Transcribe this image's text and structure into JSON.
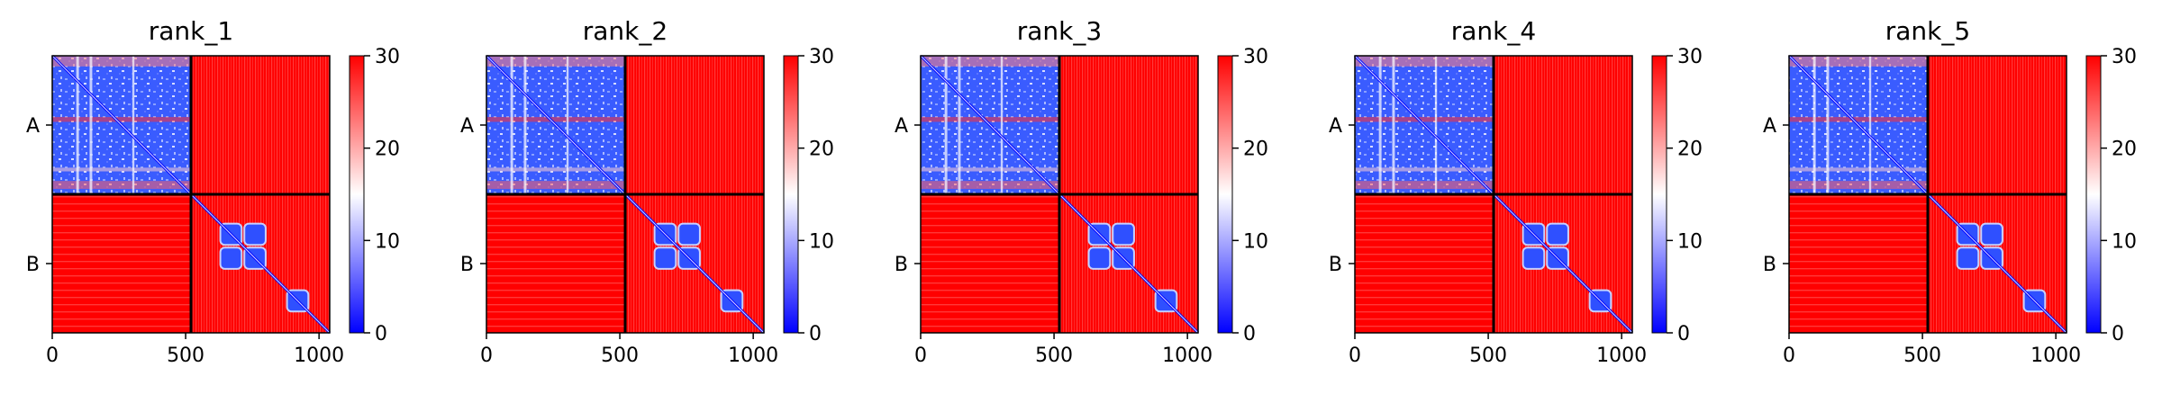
{
  "chart_data": [
    {
      "type": "heatmap",
      "title": "rank_1",
      "chains": [
        "A",
        "B"
      ],
      "chain_boundary": 520,
      "xlim": [
        0,
        1040
      ],
      "ylim": [
        1040,
        0
      ],
      "xticks": [
        0,
        500,
        1000
      ],
      "yticklabels": [
        "A",
        "B"
      ],
      "colorbar": {
        "min": 0,
        "max": 30,
        "ticks": [
          0,
          10,
          20,
          30
        ],
        "colors": [
          "#0000ff",
          "#ffffff",
          "#ff0000"
        ]
      }
    },
    {
      "type": "heatmap",
      "title": "rank_2",
      "chains": [
        "A",
        "B"
      ],
      "chain_boundary": 520,
      "xlim": [
        0,
        1040
      ],
      "ylim": [
        1040,
        0
      ],
      "xticks": [
        0,
        500,
        1000
      ],
      "yticklabels": [
        "A",
        "B"
      ],
      "colorbar": {
        "min": 0,
        "max": 30,
        "ticks": [
          0,
          10,
          20,
          30
        ],
        "colors": [
          "#0000ff",
          "#ffffff",
          "#ff0000"
        ]
      }
    },
    {
      "type": "heatmap",
      "title": "rank_3",
      "chains": [
        "A",
        "B"
      ],
      "chain_boundary": 520,
      "xlim": [
        0,
        1040
      ],
      "ylim": [
        1040,
        0
      ],
      "xticks": [
        0,
        500,
        1000
      ],
      "yticklabels": [
        "A",
        "B"
      ],
      "colorbar": {
        "min": 0,
        "max": 30,
        "ticks": [
          0,
          10,
          20,
          30
        ],
        "colors": [
          "#0000ff",
          "#ffffff",
          "#ff0000"
        ]
      }
    },
    {
      "type": "heatmap",
      "title": "rank_4",
      "chains": [
        "A",
        "B"
      ],
      "chain_boundary": 520,
      "xlim": [
        0,
        1040
      ],
      "ylim": [
        1040,
        0
      ],
      "xticks": [
        0,
        500,
        1000
      ],
      "yticklabels": [
        "A",
        "B"
      ],
      "colorbar": {
        "min": 0,
        "max": 30,
        "ticks": [
          0,
          10,
          20,
          30
        ],
        "colors": [
          "#0000ff",
          "#ffffff",
          "#ff0000"
        ]
      }
    },
    {
      "type": "heatmap",
      "title": "rank_5",
      "chains": [
        "A",
        "B"
      ],
      "chain_boundary": 520,
      "xlim": [
        0,
        1040
      ],
      "ylim": [
        1040,
        0
      ],
      "xticks": [
        0,
        500,
        1000
      ],
      "yticklabels": [
        "A",
        "B"
      ],
      "colorbar": {
        "min": 0,
        "max": 30,
        "ticks": [
          0,
          10,
          20,
          30
        ],
        "colors": [
          "#0000ff",
          "#ffffff",
          "#ff0000"
        ]
      }
    }
  ]
}
